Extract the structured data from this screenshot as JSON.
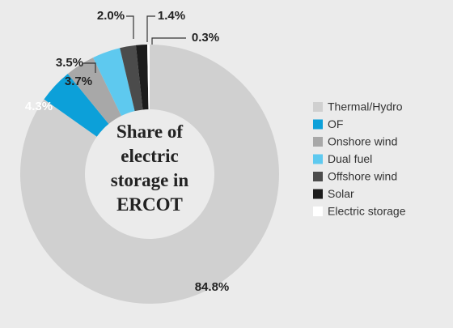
{
  "chart_data": {
    "type": "donut",
    "title": "Share of electric storage in ERCOT",
    "categories": [
      "Thermal/Hydro",
      "OF",
      "Onshore wind",
      "Dual fuel",
      "Offshore wind",
      "Solar",
      "Electric storage"
    ],
    "values": [
      84.8,
      4.3,
      3.7,
      3.5,
      2.0,
      1.4,
      0.3
    ],
    "value_labels": [
      "84.8%",
      "4.3%",
      "3.7%",
      "3.5%",
      "2.0%",
      "1.4%",
      "0.3%"
    ],
    "colors": [
      "#d0d0d0",
      "#0ca0d9",
      "#a8a8a8",
      "#5ec9ef",
      "#4b4b4b",
      "#1c1c1c",
      "#ffffff"
    ],
    "legend": "right"
  }
}
